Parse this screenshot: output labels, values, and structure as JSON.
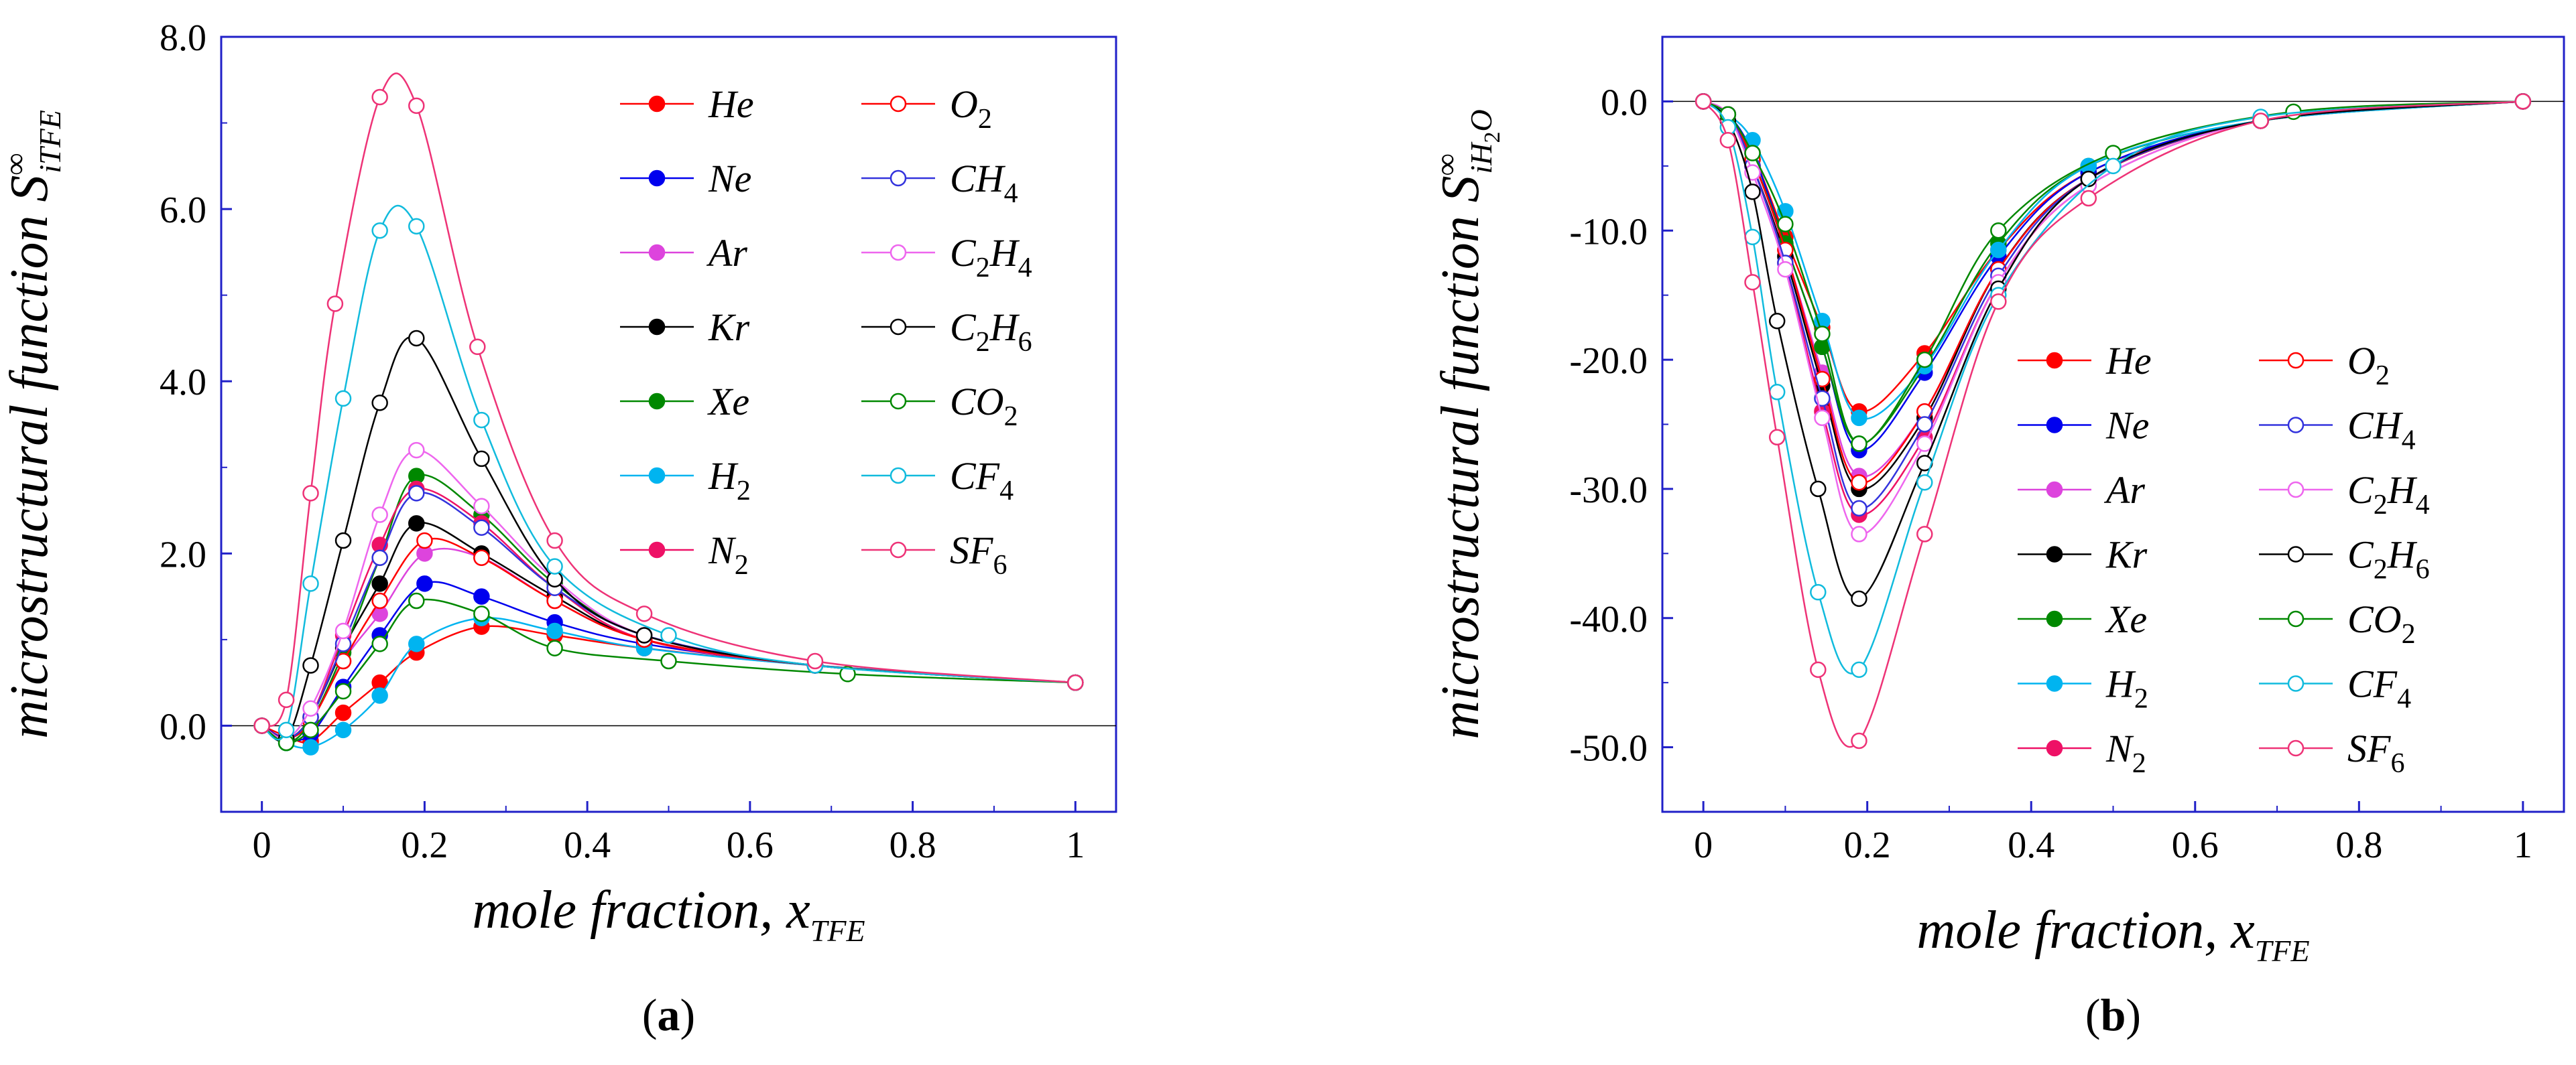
{
  "chart_data": [
    {
      "type": "line",
      "panel_label_open": "(",
      "panel_label_letter": "a",
      "panel_label_close": ")",
      "xlabel_main": "mole fraction, x",
      "xlabel_sub": "TFE",
      "ylabel_main": "microstructural function S",
      "ylabel_sup": "∞",
      "ylabel_sub": "iTFE",
      "xlim": [
        -0.05,
        1.05
      ],
      "ylim": [
        -1.0,
        8.0
      ],
      "xticks": [
        0,
        0.2,
        0.4,
        0.6,
        0.8,
        1
      ],
      "xtick_labels": [
        "0",
        "0.2",
        "0.4",
        "0.6",
        "0.8",
        "1"
      ],
      "yticks": [
        0,
        2,
        4,
        6,
        8
      ],
      "ytick_labels": [
        "0.0",
        "2.0",
        "4.0",
        "6.0",
        "8.0"
      ],
      "zero_line": true,
      "legend_position": "top-right",
      "series": [
        {
          "name": "He",
          "base": "He",
          "sub": "",
          "filled": true,
          "color": "#ff0000",
          "x": [
            0,
            0.03,
            0.06,
            0.1,
            0.145,
            0.19,
            0.27,
            0.36,
            0.47,
            0.68,
            1.0
          ],
          "y": [
            0,
            -0.12,
            -0.18,
            0.15,
            0.5,
            0.85,
            1.15,
            1.05,
            0.9,
            0.7,
            0.5
          ]
        },
        {
          "name": "Ne",
          "base": "Ne",
          "sub": "",
          "filled": true,
          "color": "#0000ee",
          "x": [
            0,
            0.03,
            0.06,
            0.1,
            0.145,
            0.2,
            0.27,
            0.36,
            0.47,
            0.68,
            1.0
          ],
          "y": [
            0,
            -0.15,
            -0.1,
            0.45,
            1.05,
            1.65,
            1.5,
            1.2,
            0.95,
            0.7,
            0.5
          ]
        },
        {
          "name": "Ar",
          "base": "Ar",
          "sub": "",
          "filled": true,
          "color": "#dd44dd",
          "x": [
            0,
            0.03,
            0.06,
            0.1,
            0.145,
            0.2,
            0.27,
            0.36,
            0.47,
            0.68,
            1.0
          ],
          "y": [
            0,
            -0.15,
            0.05,
            0.75,
            1.3,
            2.0,
            1.95,
            1.45,
            1.0,
            0.7,
            0.5
          ]
        },
        {
          "name": "Kr",
          "base": "Kr",
          "sub": "",
          "filled": true,
          "color": "#000000",
          "x": [
            0,
            0.03,
            0.06,
            0.1,
            0.145,
            0.19,
            0.27,
            0.36,
            0.47,
            0.68,
            1.0
          ],
          "y": [
            0,
            -0.15,
            0.1,
            0.9,
            1.65,
            2.35,
            2.0,
            1.5,
            1.0,
            0.7,
            0.5
          ]
        },
        {
          "name": "Xe",
          "base": "Xe",
          "sub": "",
          "filled": true,
          "color": "#008800",
          "x": [
            0,
            0.03,
            0.06,
            0.1,
            0.145,
            0.19,
            0.27,
            0.36,
            0.47,
            0.68,
            1.0
          ],
          "y": [
            0,
            -0.2,
            0.05,
            0.85,
            1.95,
            2.9,
            2.45,
            1.65,
            1.05,
            0.7,
            0.5
          ]
        },
        {
          "name": "H2",
          "base": "H",
          "sub": "2",
          "filled": true,
          "color": "#00b4f0",
          "x": [
            0,
            0.03,
            0.06,
            0.1,
            0.145,
            0.19,
            0.27,
            0.36,
            0.47,
            0.68,
            1.0
          ],
          "y": [
            0,
            -0.2,
            -0.25,
            -0.05,
            0.35,
            0.95,
            1.25,
            1.1,
            0.9,
            0.7,
            0.5
          ]
        },
        {
          "name": "N2",
          "base": "N",
          "sub": "2",
          "filled": true,
          "color": "#ee1166",
          "x": [
            0,
            0.03,
            0.06,
            0.1,
            0.145,
            0.19,
            0.27,
            0.36,
            0.47,
            0.68,
            1.0
          ],
          "y": [
            0,
            -0.15,
            0.1,
            1.05,
            2.1,
            2.75,
            2.35,
            1.6,
            1.0,
            0.7,
            0.5
          ]
        },
        {
          "name": "O2",
          "base": "O",
          "sub": "2",
          "filled": false,
          "color": "#ff0000",
          "x": [
            0,
            0.03,
            0.06,
            0.1,
            0.145,
            0.2,
            0.27,
            0.36,
            0.47,
            0.68,
            1.0
          ],
          "y": [
            0,
            -0.15,
            0.05,
            0.75,
            1.45,
            2.15,
            1.95,
            1.45,
            1.0,
            0.7,
            0.5
          ]
        },
        {
          "name": "CH4",
          "base": "CH",
          "sub": "4",
          "filled": false,
          "color": "#3333dd",
          "x": [
            0,
            0.03,
            0.06,
            0.1,
            0.145,
            0.19,
            0.27,
            0.36,
            0.47,
            0.68,
            1.0
          ],
          "y": [
            0,
            -0.15,
            0.1,
            0.95,
            1.95,
            2.7,
            2.3,
            1.6,
            1.05,
            0.7,
            0.5
          ]
        },
        {
          "name": "C2H4",
          "base": "C",
          "sub": "2",
          "base2": "H",
          "sub2": "4",
          "filled": false,
          "color": "#ee66ee",
          "x": [
            0,
            0.03,
            0.06,
            0.1,
            0.145,
            0.19,
            0.27,
            0.36,
            0.47,
            0.68,
            1.0
          ],
          "y": [
            0,
            -0.15,
            0.2,
            1.1,
            2.45,
            3.2,
            2.55,
            1.7,
            1.05,
            0.7,
            0.5
          ]
        },
        {
          "name": "C2H6",
          "base": "C",
          "sub": "2",
          "base2": "H",
          "sub2": "6",
          "filled": false,
          "color": "#000000",
          "x": [
            0,
            0.03,
            0.06,
            0.1,
            0.145,
            0.19,
            0.27,
            0.36,
            0.47,
            0.68,
            1.0
          ],
          "y": [
            0,
            -0.15,
            0.7,
            2.15,
            3.75,
            4.5,
            3.1,
            1.7,
            1.05,
            0.7,
            0.5
          ]
        },
        {
          "name": "CO2",
          "base": "CO",
          "sub": "2",
          "filled": false,
          "color": "#008800",
          "x": [
            0,
            0.03,
            0.06,
            0.1,
            0.145,
            0.19,
            0.27,
            0.36,
            0.5,
            0.72,
            1.0
          ],
          "y": [
            0,
            -0.2,
            -0.05,
            0.4,
            0.95,
            1.45,
            1.3,
            0.9,
            0.75,
            0.6,
            0.5
          ]
        },
        {
          "name": "CF4",
          "base": "CF",
          "sub": "4",
          "filled": false,
          "color": "#11bbdd",
          "x": [
            0,
            0.03,
            0.06,
            0.1,
            0.145,
            0.19,
            0.27,
            0.36,
            0.5,
            0.68,
            1.0
          ],
          "y": [
            0,
            -0.05,
            1.65,
            3.8,
            5.75,
            5.8,
            3.55,
            1.85,
            1.05,
            0.7,
            0.5
          ]
        },
        {
          "name": "SF6",
          "base": "SF",
          "sub": "6",
          "filled": false,
          "color": "#ee3377",
          "x": [
            0,
            0.03,
            0.06,
            0.09,
            0.145,
            0.19,
            0.265,
            0.36,
            0.47,
            0.68,
            1.0
          ],
          "y": [
            0,
            0.3,
            2.7,
            4.9,
            7.3,
            7.2,
            4.4,
            2.15,
            1.3,
            0.75,
            0.5
          ]
        }
      ]
    },
    {
      "type": "line",
      "panel_label_open": "(",
      "panel_label_letter": "b",
      "panel_label_close": ")",
      "xlabel_main": "mole fraction, x",
      "xlabel_sub": "TFE",
      "ylabel_main": "microstructural function S",
      "ylabel_sup": "∞",
      "ylabel_sub": "iH",
      "ylabel_subsub": "2",
      "ylabel_sub_tail": "O",
      "xlim": [
        -0.05,
        1.05
      ],
      "ylim": [
        -55.0,
        5.0
      ],
      "xticks": [
        0,
        0.2,
        0.4,
        0.6,
        0.8,
        1
      ],
      "xtick_labels": [
        "0",
        "0.2",
        "0.4",
        "0.6",
        "0.8",
        "1"
      ],
      "yticks": [
        0,
        -10,
        -20,
        -30,
        -40,
        -50
      ],
      "ytick_labels": [
        "0.0",
        "-10.0",
        "-20.0",
        "-30.0",
        "-40.0",
        "-50.0"
      ],
      "zero_line": true,
      "legend_position": "center-right",
      "series": [
        {
          "name": "He",
          "base": "He",
          "sub": "",
          "filled": true,
          "color": "#ff0000",
          "x": [
            0,
            0.03,
            0.06,
            0.1,
            0.145,
            0.19,
            0.27,
            0.36,
            0.47,
            0.68,
            1.0
          ],
          "y": [
            0,
            -1,
            -4,
            -10.5,
            -17.5,
            -24,
            -19.5,
            -11.5,
            -5.5,
            -1.5,
            0
          ]
        },
        {
          "name": "Ne",
          "base": "Ne",
          "sub": "",
          "filled": true,
          "color": "#0000ee",
          "x": [
            0,
            0.03,
            0.06,
            0.1,
            0.145,
            0.19,
            0.27,
            0.36,
            0.47,
            0.68,
            1.0
          ],
          "y": [
            0,
            -1,
            -4,
            -11,
            -19,
            -27,
            -21,
            -12,
            -5.5,
            -1.5,
            0
          ]
        },
        {
          "name": "Ar",
          "base": "Ar",
          "sub": "",
          "filled": true,
          "color": "#dd44dd",
          "x": [
            0,
            0.03,
            0.06,
            0.1,
            0.145,
            0.19,
            0.27,
            0.36,
            0.47,
            0.68,
            1.0
          ],
          "y": [
            0,
            -1,
            -4.5,
            -11.5,
            -21,
            -29,
            -24,
            -13,
            -6,
            -1.5,
            0
          ]
        },
        {
          "name": "Kr",
          "base": "Kr",
          "sub": "",
          "filled": true,
          "color": "#000000",
          "x": [
            0,
            0.03,
            0.06,
            0.1,
            0.145,
            0.19,
            0.27,
            0.36,
            0.47,
            0.68,
            1.0
          ],
          "y": [
            0,
            -1,
            -5,
            -12,
            -22,
            -30,
            -24.5,
            -13,
            -6,
            -1.5,
            0
          ]
        },
        {
          "name": "Xe",
          "base": "Xe",
          "sub": "",
          "filled": true,
          "color": "#008800",
          "x": [
            0,
            0.03,
            0.06,
            0.1,
            0.145,
            0.19,
            0.27,
            0.36,
            0.47,
            0.68,
            1.0
          ],
          "y": [
            0,
            -1,
            -4.5,
            -11,
            -19,
            -26.5,
            -20.5,
            -11,
            -5,
            -1.5,
            0
          ]
        },
        {
          "name": "H2",
          "base": "H",
          "sub": "2",
          "filled": true,
          "color": "#00b4f0",
          "x": [
            0,
            0.03,
            0.06,
            0.1,
            0.145,
            0.19,
            0.27,
            0.36,
            0.47,
            0.68,
            1.0
          ],
          "y": [
            0,
            -1,
            -3,
            -8.5,
            -17,
            -24.5,
            -20.5,
            -11.5,
            -5,
            -1.5,
            0
          ]
        },
        {
          "name": "N2",
          "base": "N",
          "sub": "2",
          "filled": true,
          "color": "#ee1166",
          "x": [
            0,
            0.03,
            0.06,
            0.1,
            0.145,
            0.19,
            0.27,
            0.36,
            0.47,
            0.68,
            1.0
          ],
          "y": [
            0,
            -1,
            -5,
            -12.5,
            -24,
            -32,
            -26,
            -14,
            -6.5,
            -1.5,
            0
          ]
        },
        {
          "name": "O2",
          "base": "O",
          "sub": "2",
          "filled": false,
          "color": "#ff0000",
          "x": [
            0,
            0.03,
            0.06,
            0.1,
            0.145,
            0.19,
            0.27,
            0.36,
            0.47,
            0.68,
            1.0
          ],
          "y": [
            0,
            -1,
            -4.5,
            -11.5,
            -21.5,
            -29.5,
            -24,
            -13,
            -6,
            -1.5,
            0
          ]
        },
        {
          "name": "CH4",
          "base": "CH",
          "sub": "4",
          "filled": false,
          "color": "#3333dd",
          "x": [
            0,
            0.03,
            0.06,
            0.1,
            0.145,
            0.19,
            0.27,
            0.36,
            0.47,
            0.68,
            1.0
          ],
          "y": [
            0,
            -1,
            -5,
            -12.5,
            -23,
            -31.5,
            -25,
            -13.5,
            -6,
            -1.5,
            0
          ]
        },
        {
          "name": "C2H4",
          "base": "C",
          "sub": "2",
          "base2": "H",
          "sub2": "4",
          "filled": false,
          "color": "#ee66ee",
          "x": [
            0,
            0.03,
            0.06,
            0.1,
            0.145,
            0.19,
            0.27,
            0.36,
            0.47,
            0.68,
            1.0
          ],
          "y": [
            0,
            -1,
            -5.5,
            -13,
            -24.5,
            -33.5,
            -26.5,
            -14,
            -6.5,
            -1.5,
            0
          ]
        },
        {
          "name": "C2H6",
          "base": "C",
          "sub": "2",
          "base2": "H",
          "sub2": "6",
          "filled": false,
          "color": "#000000",
          "x": [
            0,
            0.03,
            0.06,
            0.09,
            0.14,
            0.19,
            0.27,
            0.36,
            0.47,
            0.68,
            1.0
          ],
          "y": [
            0,
            -1.5,
            -7,
            -17,
            -30,
            -38.5,
            -28,
            -14.5,
            -6,
            -1.5,
            0
          ]
        },
        {
          "name": "CO2",
          "base": "CO",
          "sub": "2",
          "filled": false,
          "color": "#008800",
          "x": [
            0,
            0.03,
            0.06,
            0.1,
            0.145,
            0.19,
            0.27,
            0.36,
            0.5,
            0.72,
            1.0
          ],
          "y": [
            0,
            -1,
            -4,
            -9.5,
            -18,
            -26.5,
            -20,
            -10,
            -4,
            -0.8,
            0
          ]
        },
        {
          "name": "CF4",
          "base": "CF",
          "sub": "4",
          "filled": false,
          "color": "#11bbdd",
          "x": [
            0,
            0.03,
            0.06,
            0.09,
            0.14,
            0.19,
            0.27,
            0.36,
            0.5,
            0.68,
            1.0
          ],
          "y": [
            0,
            -2,
            -10.5,
            -22.5,
            -38,
            -44,
            -29.5,
            -15,
            -5,
            -1.2,
            0
          ]
        },
        {
          "name": "SF6",
          "base": "SF",
          "sub": "6",
          "filled": false,
          "color": "#ee3377",
          "x": [
            0,
            0.03,
            0.06,
            0.09,
            0.14,
            0.19,
            0.27,
            0.36,
            0.47,
            0.68,
            1.0
          ],
          "y": [
            0,
            -3,
            -14,
            -26,
            -44,
            -49.5,
            -33.5,
            -15.5,
            -7.5,
            -1.5,
            0
          ]
        }
      ]
    }
  ]
}
